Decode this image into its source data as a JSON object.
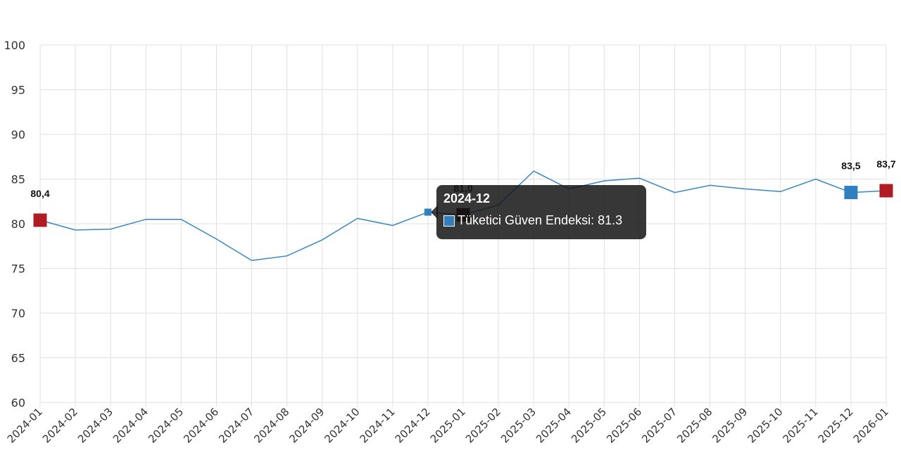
{
  "colors": {
    "line": "#3a86c0",
    "highlight_red": "#b01c22",
    "highlight_blue": "#2f7fc1",
    "hover_dark": "#3a0a0a",
    "tooltip_bg": "#1e1e1e"
  },
  "chart_data": {
    "type": "line",
    "categories": [
      "2024-01",
      "2024-02",
      "2024-03",
      "2024-04",
      "2024-05",
      "2024-06",
      "2024-07",
      "2024-08",
      "2024-09",
      "2024-10",
      "2024-11",
      "2024-12",
      "2025-01",
      "2025-02",
      "2025-03",
      "2025-04",
      "2025-05",
      "2025-06",
      "2025-07",
      "2025-08",
      "2025-09",
      "2025-10",
      "2025-11",
      "2025-12",
      "2026-01"
    ],
    "series": [
      {
        "name": "Tüketici Güven Endeksi",
        "values": [
          80.4,
          79.3,
          79.4,
          80.5,
          80.5,
          78.3,
          75.9,
          76.4,
          78.2,
          80.6,
          79.8,
          81.3,
          81.0,
          82.1,
          85.9,
          83.9,
          84.8,
          85.1,
          83.5,
          84.3,
          83.9,
          83.6,
          85.0,
          83.5,
          83.7
        ]
      }
    ],
    "yticks": [
      "100",
      "95",
      "90",
      "85",
      "80",
      "75",
      "70",
      "65",
      "60"
    ],
    "ylim": [
      60,
      100
    ],
    "grid": true,
    "data_labels": [
      {
        "category": "2024-01",
        "text": "80,4",
        "marker": "red"
      },
      {
        "category": "2025-01",
        "text": "81,0",
        "marker": "dark"
      },
      {
        "category": "2025-12",
        "text": "83,5",
        "marker": "blue"
      },
      {
        "category": "2026-01",
        "text": "83,7",
        "marker": "red"
      }
    ],
    "active_point": "2024-12"
  },
  "tooltip": {
    "title": "2024-12",
    "series_name": "Tüketici Güven Endeksi",
    "separator": ": ",
    "value": "81.3"
  }
}
